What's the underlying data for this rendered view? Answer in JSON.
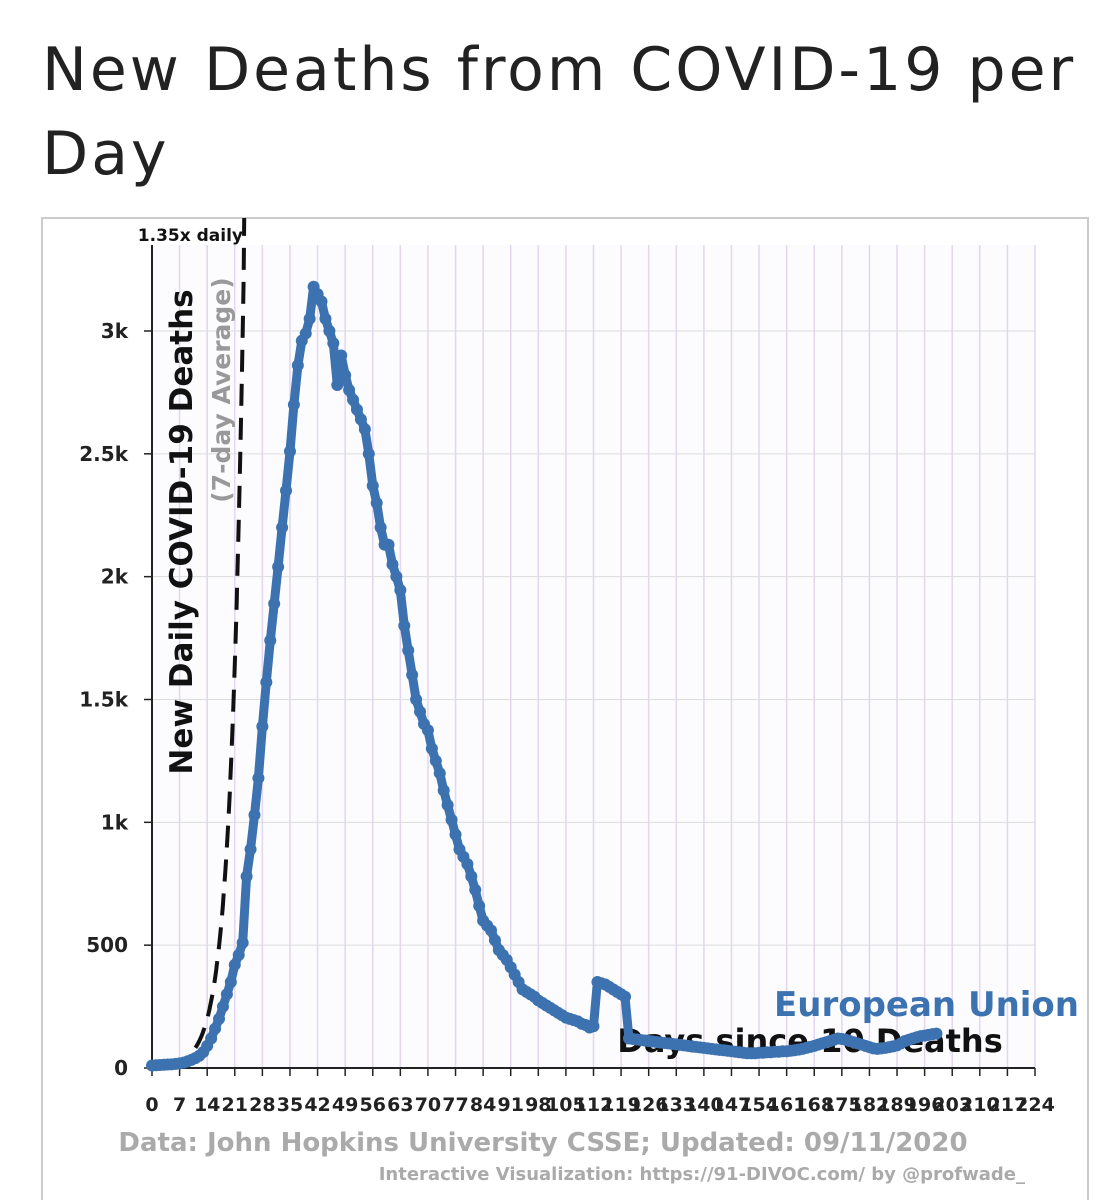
{
  "chart_data": {
    "type": "line",
    "title": "New Deaths from COVID-19 per Day",
    "y_label": "New Daily COVID-19 Deaths",
    "y_sublabel": "(7-day Average)",
    "x_label": "Days since 10 Deaths",
    "source": "Data: John Hopkins University CSSE; Updated: 09/11/2020",
    "credit": "Interactive Visualization: https://91-DIVOC.com/ by @profwade_",
    "reference": {
      "label": "1.35x daily",
      "rate": 1.35,
      "start_value": 10,
      "start_x": 4
    },
    "xlim": [
      0,
      224
    ],
    "xticks": [
      0,
      7,
      14,
      21,
      28,
      35,
      42,
      49,
      56,
      63,
      70,
      77,
      84,
      91,
      98,
      105,
      112,
      119,
      126,
      133,
      140,
      147,
      154,
      161,
      168,
      175,
      182,
      189,
      196,
      203,
      210,
      217,
      224
    ],
    "ylim": [
      0,
      3350
    ],
    "yticks": [
      0,
      500,
      {
        "value": 1000,
        "label": "1k"
      },
      {
        "value": 1500,
        "label": "1.5k"
      },
      {
        "value": 2000,
        "label": "2k"
      },
      {
        "value": 2500,
        "label": "2.5k"
      },
      {
        "value": 3000,
        "label": "3k"
      }
    ],
    "grid": true,
    "series": [
      {
        "name": "European Union",
        "color": "#3d72b0",
        "x": [
          0,
          1,
          2,
          3,
          4,
          5,
          6,
          7,
          8,
          9,
          10,
          11,
          12,
          13,
          14,
          15,
          16,
          17,
          18,
          19,
          20,
          21,
          22,
          23,
          24,
          25,
          26,
          27,
          28,
          29,
          30,
          31,
          32,
          33,
          34,
          35,
          36,
          37,
          38,
          39,
          40,
          41,
          42,
          43,
          44,
          45,
          46,
          47,
          48,
          49,
          50,
          51,
          52,
          53,
          54,
          55,
          56,
          57,
          58,
          59,
          60,
          61,
          62,
          63,
          64,
          65,
          66,
          67,
          68,
          69,
          70,
          71,
          72,
          73,
          74,
          75,
          76,
          77,
          78,
          79,
          80,
          81,
          82,
          83,
          84,
          85,
          86,
          87,
          88,
          89,
          90,
          91,
          92,
          93,
          94,
          95,
          96,
          97,
          98,
          99,
          100,
          101,
          102,
          103,
          104,
          105,
          106,
          107,
          108,
          109,
          110,
          111,
          112,
          113,
          114,
          115,
          116,
          117,
          118,
          119,
          120,
          121,
          122,
          123,
          124,
          125,
          126,
          127,
          128,
          129,
          130,
          131,
          132,
          133,
          134,
          135,
          136,
          137,
          138,
          139,
          140,
          141,
          142,
          143,
          144,
          145,
          146,
          147,
          148,
          149,
          150,
          151,
          152,
          153,
          154,
          155,
          156,
          157,
          158,
          159,
          160,
          161,
          162,
          163,
          164,
          165,
          166,
          167,
          168,
          169,
          170,
          171,
          172,
          173,
          174,
          175,
          176,
          177,
          178,
          179,
          180,
          181,
          182,
          183,
          184,
          185,
          186,
          187,
          188,
          189,
          190,
          191,
          192,
          193,
          194,
          195,
          196,
          197,
          198,
          199
        ],
        "values": [
          10,
          11,
          12,
          13,
          14,
          15,
          17,
          19,
          22,
          27,
          33,
          40,
          50,
          65,
          90,
          120,
          160,
          200,
          250,
          300,
          350,
          420,
          460,
          510,
          780,
          890,
          1030,
          1180,
          1390,
          1570,
          1740,
          1890,
          2040,
          2200,
          2350,
          2510,
          2700,
          2860,
          2960,
          2990,
          3050,
          3180,
          3150,
          3120,
          3050,
          3000,
          2950,
          2780,
          2900,
          2820,
          2760,
          2720,
          2680,
          2640,
          2600,
          2500,
          2370,
          2300,
          2200,
          2130,
          2130,
          2050,
          2000,
          1945,
          1800,
          1700,
          1600,
          1500,
          1450,
          1400,
          1375,
          1300,
          1250,
          1200,
          1130,
          1070,
          1010,
          950,
          890,
          860,
          830,
          780,
          725,
          660,
          600,
          580,
          560,
          520,
          480,
          460,
          440,
          410,
          380,
          350,
          320,
          310,
          300,
          290,
          275,
          265,
          255,
          245,
          235,
          225,
          215,
          205,
          200,
          195,
          190,
          180,
          175,
          165,
          170,
          350,
          345,
          340,
          330,
          320,
          310,
          300,
          290,
          120,
          118,
          116,
          114,
          112,
          110,
          108,
          106,
          104,
          102,
          100,
          98,
          96,
          94,
          92,
          90,
          88,
          86,
          84,
          82,
          80,
          78,
          76,
          74,
          72,
          70,
          68,
          66,
          64,
          62,
          60,
          60,
          60,
          62,
          62,
          64,
          64,
          66,
          66,
          68,
          68,
          70,
          72,
          75,
          78,
          82,
          86,
          90,
          95,
          100,
          105,
          110,
          115,
          120,
          118,
          115,
          110,
          105,
          100,
          95,
          90,
          85,
          80,
          78,
          80,
          82,
          85,
          88,
          92,
          100,
          110,
          115,
          120,
          125,
          130,
          132,
          135,
          138,
          140
        ]
      }
    ]
  }
}
